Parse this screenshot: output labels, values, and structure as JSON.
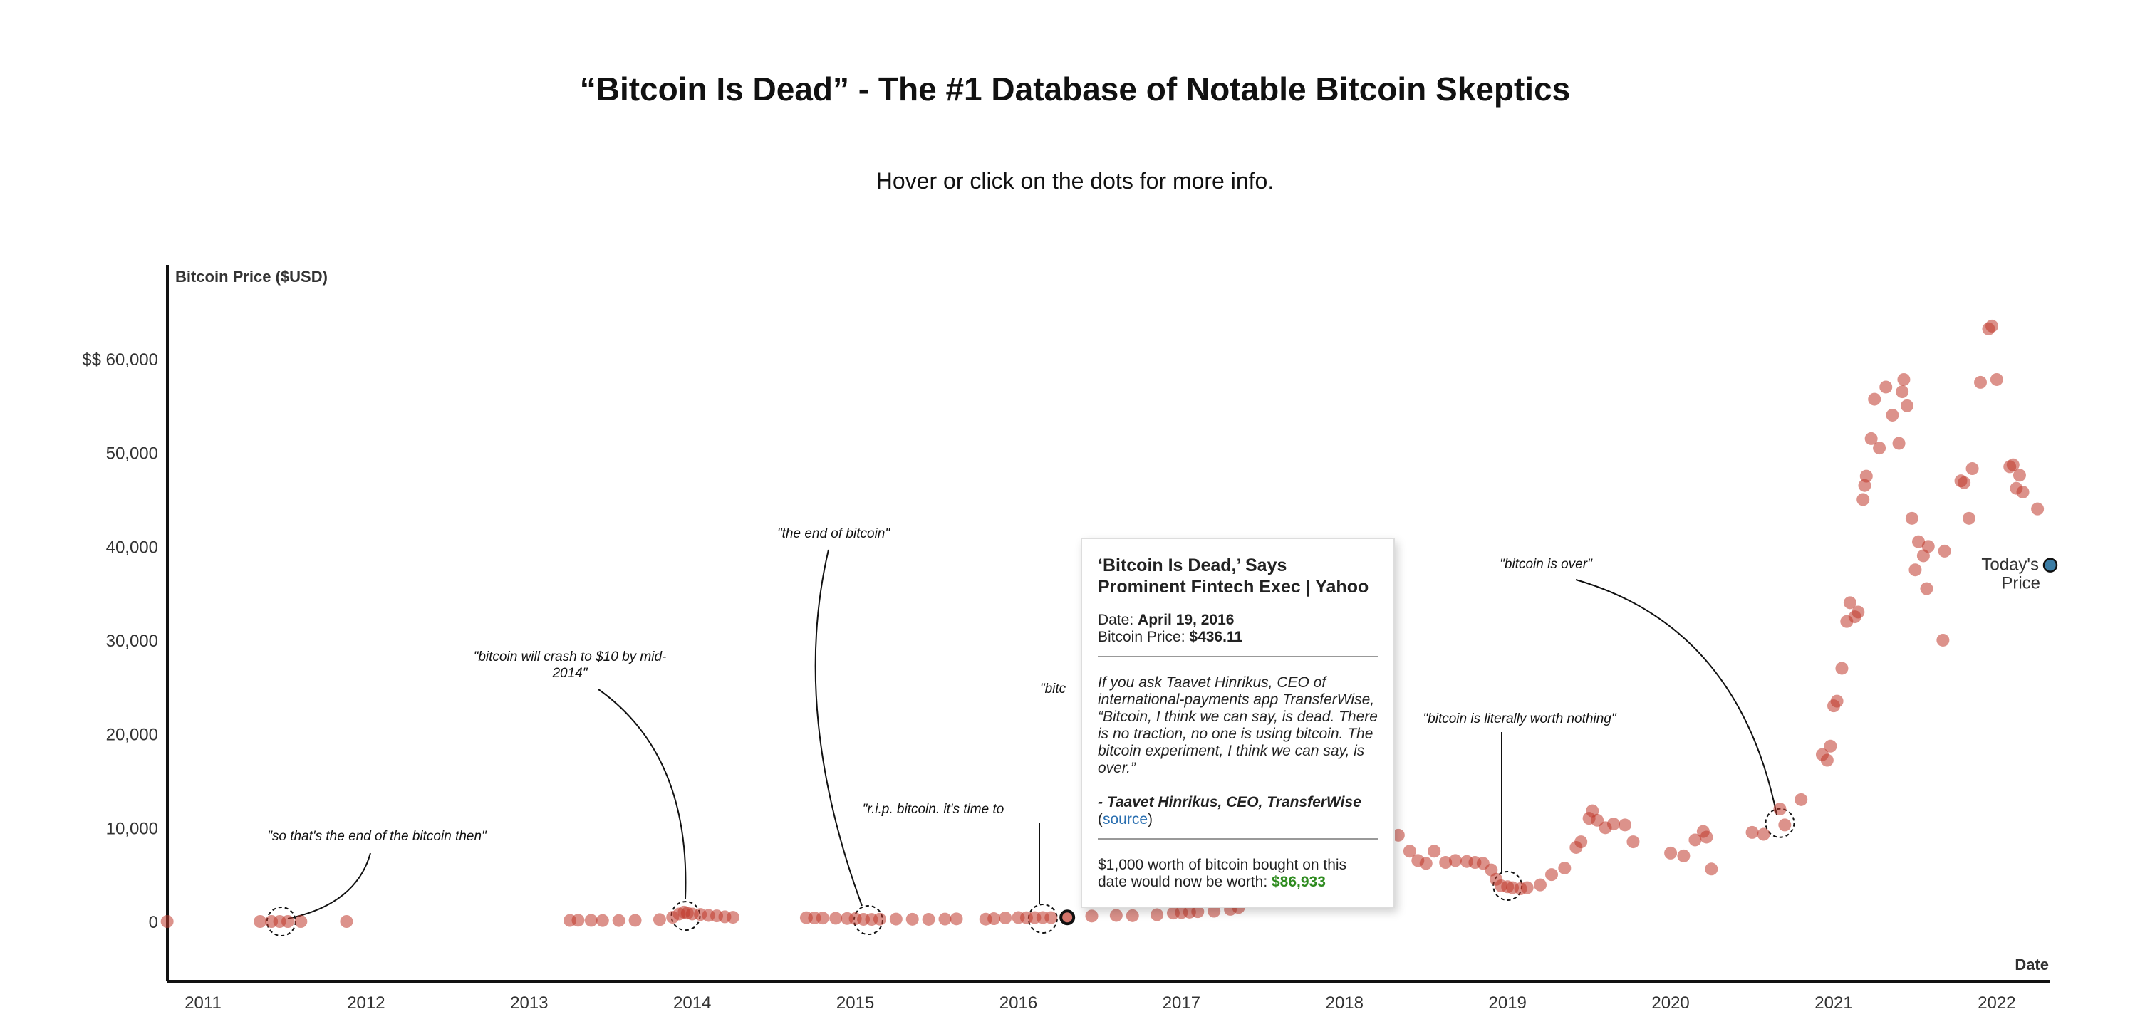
{
  "header": {
    "title": "“Bitcoin Is Dead” - The #1 Database of Notable Bitcoin Skeptics",
    "subtitle": "Hover or click on the dots for more info."
  },
  "chart_data": {
    "type": "scatter",
    "ylabel": "Bitcoin Price ($USD)",
    "xlabel": "Date",
    "ylim": [
      0,
      60000
    ],
    "xlim": [
      2010.78,
      2022.33
    ],
    "y_ticks": [
      "0",
      "10,000",
      "20,000",
      "30,000",
      "40,000",
      "50,000",
      "$$ 60,000"
    ],
    "x_ticks": [
      "2011",
      "2012",
      "2013",
      "2014",
      "2015",
      "2016",
      "2017",
      "2018",
      "2019",
      "2020",
      "2021",
      "2022"
    ],
    "grid": false,
    "dot_color": "#c0392b",
    "points": [
      [
        2010.78,
        0
      ],
      [
        2011.35,
        0
      ],
      [
        2011.42,
        0
      ],
      [
        2011.47,
        0
      ],
      [
        2011.52,
        0
      ],
      [
        2011.6,
        0
      ],
      [
        2011.88,
        0
      ],
      [
        2013.25,
        110
      ],
      [
        2013.3,
        130
      ],
      [
        2013.38,
        120
      ],
      [
        2013.45,
        100
      ],
      [
        2013.55,
        100
      ],
      [
        2013.65,
        120
      ],
      [
        2013.8,
        200
      ],
      [
        2013.88,
        450
      ],
      [
        2013.92,
        800
      ],
      [
        2013.95,
        1000
      ],
      [
        2013.97,
        900
      ],
      [
        2014.0,
        800
      ],
      [
        2014.05,
        750
      ],
      [
        2014.1,
        650
      ],
      [
        2014.15,
        600
      ],
      [
        2014.2,
        500
      ],
      [
        2014.25,
        450
      ],
      [
        2014.7,
        400
      ],
      [
        2014.75,
        380
      ],
      [
        2014.8,
        370
      ],
      [
        2014.88,
        350
      ],
      [
        2014.95,
        320
      ],
      [
        2015.0,
        300
      ],
      [
        2015.05,
        230
      ],
      [
        2015.1,
        220
      ],
      [
        2015.15,
        250
      ],
      [
        2015.25,
        260
      ],
      [
        2015.35,
        240
      ],
      [
        2015.45,
        230
      ],
      [
        2015.55,
        260
      ],
      [
        2015.62,
        280
      ],
      [
        2015.8,
        250
      ],
      [
        2015.85,
        300
      ],
      [
        2015.92,
        380
      ],
      [
        2016.0,
        420
      ],
      [
        2016.05,
        400
      ],
      [
        2016.1,
        410
      ],
      [
        2016.15,
        420
      ],
      [
        2016.2,
        410
      ],
      [
        2016.45,
        580
      ],
      [
        2016.6,
        650
      ],
      [
        2016.7,
        620
      ],
      [
        2016.85,
        720
      ],
      [
        2016.95,
        900
      ],
      [
        2017.0,
        950
      ],
      [
        2017.05,
        1000
      ],
      [
        2017.1,
        1050
      ],
      [
        2017.2,
        1100
      ],
      [
        2017.3,
        1300
      ],
      [
        2017.35,
        1500
      ],
      [
        2018.33,
        9200
      ],
      [
        2018.4,
        7500
      ],
      [
        2018.45,
        6500
      ],
      [
        2018.5,
        6200
      ],
      [
        2018.55,
        7500
      ],
      [
        2018.62,
        6300
      ],
      [
        2018.68,
        6500
      ],
      [
        2018.75,
        6400
      ],
      [
        2018.8,
        6300
      ],
      [
        2018.85,
        6200
      ],
      [
        2018.9,
        5500
      ],
      [
        2018.93,
        4500
      ],
      [
        2018.96,
        3800
      ],
      [
        2019.0,
        3700
      ],
      [
        2019.03,
        3600
      ],
      [
        2019.08,
        3500
      ],
      [
        2019.12,
        3600
      ],
      [
        2019.2,
        3900
      ],
      [
        2019.27,
        5000
      ],
      [
        2019.35,
        5700
      ],
      [
        2019.42,
        7900
      ],
      [
        2019.45,
        8500
      ],
      [
        2019.5,
        11000
      ],
      [
        2019.52,
        11800
      ],
      [
        2019.55,
        10800
      ],
      [
        2019.6,
        10000
      ],
      [
        2019.65,
        10400
      ],
      [
        2019.72,
        10300
      ],
      [
        2019.77,
        8500
      ],
      [
        2020.0,
        7300
      ],
      [
        2020.08,
        7000
      ],
      [
        2020.15,
        8700
      ],
      [
        2020.2,
        9600
      ],
      [
        2020.22,
        9000
      ],
      [
        2020.25,
        5600
      ],
      [
        2020.5,
        9500
      ],
      [
        2020.57,
        9300
      ],
      [
        2020.67,
        12000
      ],
      [
        2020.7,
        10300
      ],
      [
        2020.8,
        13000
      ],
      [
        2020.93,
        17800
      ],
      [
        2020.96,
        17200
      ],
      [
        2020.98,
        18700
      ],
      [
        2021.0,
        23000
      ],
      [
        2021.02,
        23500
      ],
      [
        2021.05,
        27000
      ],
      [
        2021.08,
        32000
      ],
      [
        2021.1,
        34000
      ],
      [
        2021.13,
        32500
      ],
      [
        2021.15,
        33000
      ],
      [
        2021.18,
        45000
      ],
      [
        2021.19,
        46500
      ],
      [
        2021.2,
        47500
      ],
      [
        2021.23,
        51500
      ],
      [
        2021.25,
        55700
      ],
      [
        2021.28,
        50500
      ],
      [
        2021.32,
        57000
      ],
      [
        2021.36,
        54000
      ],
      [
        2021.4,
        51000
      ],
      [
        2021.42,
        56500
      ],
      [
        2021.43,
        57800
      ],
      [
        2021.45,
        55000
      ],
      [
        2021.48,
        43000
      ],
      [
        2021.5,
        37500
      ],
      [
        2021.52,
        40500
      ],
      [
        2021.55,
        39000
      ],
      [
        2021.57,
        35500
      ],
      [
        2021.58,
        40000
      ],
      [
        2021.68,
        39500
      ],
      [
        2021.67,
        30000
      ],
      [
        2021.78,
        47000
      ],
      [
        2021.8,
        46800
      ],
      [
        2021.83,
        43000
      ],
      [
        2021.85,
        48300
      ],
      [
        2021.9,
        57500
      ],
      [
        2021.95,
        63200
      ],
      [
        2021.97,
        63500
      ],
      [
        2022.0,
        57800
      ],
      [
        2022.08,
        48500
      ],
      [
        2022.1,
        48700
      ],
      [
        2022.12,
        46200
      ],
      [
        2022.14,
        47600
      ],
      [
        2022.16,
        45800
      ],
      [
        2022.25,
        44000
      ]
    ],
    "highlighted_point": [
      2016.3,
      436.11
    ],
    "todays_price": {
      "label_line1": "Today's",
      "label_line2": "Price",
      "value": 38000,
      "color": "#3a7ca5"
    },
    "annotations": [
      {
        "text": [
          "\"so that's the end of the bitcoin then\""
        ],
        "point": [
          2011.48,
          0
        ]
      },
      {
        "text": [
          "\"bitcoin will crash to $10 by mid-",
          "2014\""
        ],
        "point": [
          2013.96,
          600
        ]
      },
      {
        "text": [
          "\"the end of bitcoin\""
        ],
        "point": [
          2015.08,
          150
        ]
      },
      {
        "text": [
          "\"bitc"
        ],
        "point": [
          2016.15,
          300
        ]
      },
      {
        "text": [
          "\"r.i.p. bitcoin. it's time to"
        ],
        "point": [
          2016.15,
          300
        ]
      },
      {
        "text": [
          "\"bitcoin is over\""
        ],
        "point": [
          2020.67,
          10500
        ]
      },
      {
        "text": [
          "\"bitcoin is literally worth nothing\""
        ],
        "point": [
          2019.0,
          3800
        ]
      }
    ]
  },
  "tooltip": {
    "title": "‘Bitcoin Is Dead,’ Says Prominent Fintech Exec | Yahoo",
    "date_label": "Date: ",
    "date": "April 19, 2016",
    "price_label": "Bitcoin Price: ",
    "price": "$436.11",
    "quote": "If you ask Taavet Hinrikus, CEO of international-payments app TransferWise, “Bitcoin, I think we can say, is dead. There is no traction, no one is using bitcoin. The bitcoin experiment, I think we can say, is over.”",
    "author": "- Taavet Hinrikus, CEO, TransferWise",
    "source_open": "(",
    "source_link": "source",
    "source_close": ")",
    "worth_text": "$1,000 worth of bitcoin bought on this date would now be worth: ",
    "worth_value": "$86,933"
  }
}
